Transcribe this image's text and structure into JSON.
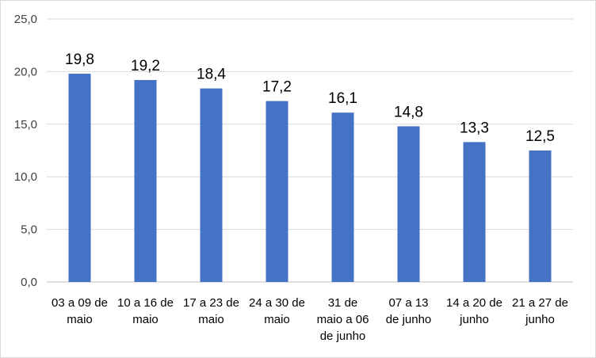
{
  "chart_data": {
    "type": "bar",
    "title": "",
    "xlabel": "",
    "ylabel": "",
    "ylim": [
      0,
      25
    ],
    "yticks": [
      0,
      5,
      10,
      15,
      20,
      25
    ],
    "ytick_labels": [
      "0,0",
      "5,0",
      "10,0",
      "15,0",
      "20,0",
      "25,0"
    ],
    "grid": true,
    "legend": "none",
    "categories": [
      [
        "03 a 09 de",
        "maio"
      ],
      [
        "10 a 16 de",
        "maio"
      ],
      [
        "17 a 23 de",
        "maio"
      ],
      [
        "24 a 30 de",
        "maio"
      ],
      [
        "31 de",
        "maio a 06",
        "de junho"
      ],
      [
        "07  a 13",
        "de junho"
      ],
      [
        "14 a 20 de",
        "junho"
      ],
      [
        "21 a 27 de",
        "junho"
      ]
    ],
    "values": [
      19.8,
      19.2,
      18.4,
      17.2,
      16.1,
      14.8,
      13.3,
      12.5
    ],
    "data_labels": [
      "19,8",
      "19,2",
      "18,4",
      "17,2",
      "16,1",
      "14,8",
      "13,3",
      "12,5"
    ],
    "colors": {
      "bar": "#4472c4",
      "grid": "#d9d9d9",
      "axis": "#bfbfbf"
    }
  }
}
